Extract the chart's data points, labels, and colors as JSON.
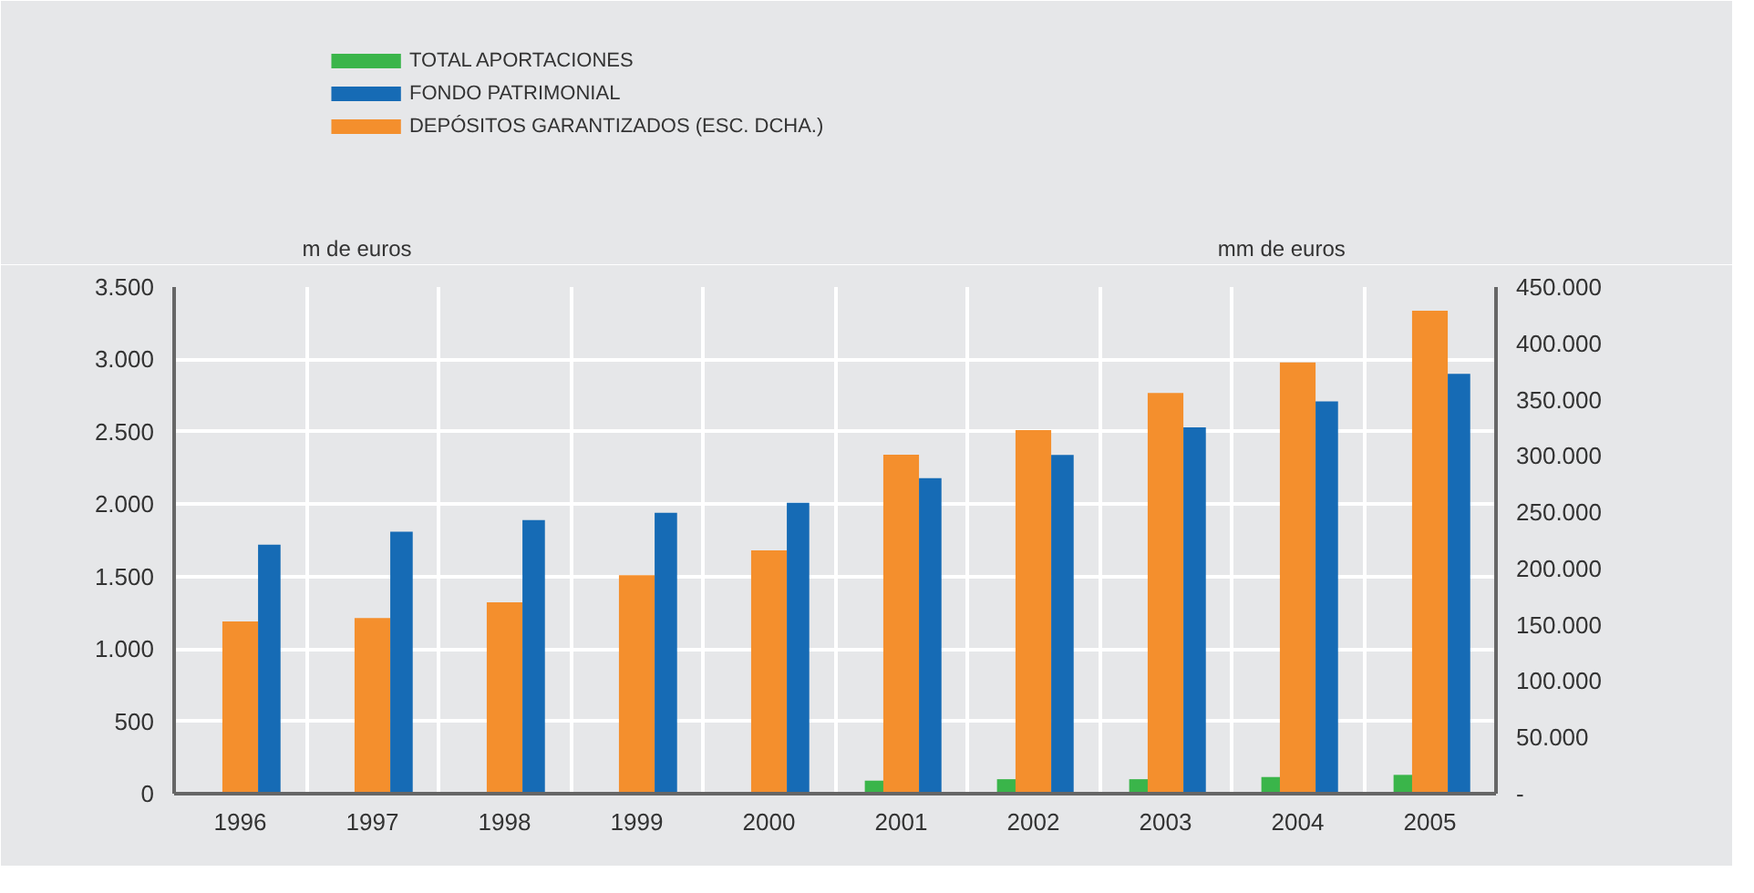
{
  "chart_data": {
    "type": "bar",
    "ylabel": "m de euros",
    "y2label": "mm de euros",
    "categories": [
      "1996",
      "1997",
      "1998",
      "1999",
      "2000",
      "2001",
      "2002",
      "2003",
      "2004",
      "2005"
    ],
    "series": [
      {
        "name": "TOTAL APORTACIONES",
        "color": "#3ab54a",
        "values": [
          null,
          null,
          null,
          null,
          null,
          90,
          100,
          100,
          115,
          130
        ]
      },
      {
        "name": "DEPÓSITOS GARANTIZADOS (ESC. DCHA.)",
        "color": "#f48f2d",
        "axis": "y2",
        "values": [
          153000,
          156000,
          170000,
          194000,
          216000,
          301000,
          323000,
          356000,
          383000,
          429000
        ]
      },
      {
        "name": "FONDO PATRIMONIAL",
        "color": "#166bb5",
        "values": [
          1720,
          1810,
          1890,
          1940,
          2010,
          2180,
          2340,
          2530,
          2710,
          2900
        ]
      }
    ],
    "ylim": [
      0,
      3500
    ],
    "yticks": [
      {
        "value": 0,
        "label": "0"
      },
      {
        "value": 500,
        "label": "500"
      },
      {
        "value": 1000,
        "label": "1.000"
      },
      {
        "value": 1500,
        "label": "1.500"
      },
      {
        "value": 2000,
        "label": "2.000"
      },
      {
        "value": 2500,
        "label": "2.500"
      },
      {
        "value": 3000,
        "label": "3.000"
      },
      {
        "value": 3500,
        "label": "3.500"
      }
    ],
    "y2lim": [
      0,
      450000
    ],
    "y2ticks": [
      {
        "value": 0,
        "label": "-"
      },
      {
        "value": 50000,
        "label": "50.000"
      },
      {
        "value": 100000,
        "label": "100.000"
      },
      {
        "value": 150000,
        "label": "150.000"
      },
      {
        "value": 200000,
        "label": "200.000"
      },
      {
        "value": 250000,
        "label": "250.000"
      },
      {
        "value": 300000,
        "label": "300.000"
      },
      {
        "value": 350000,
        "label": "350.000"
      },
      {
        "value": 400000,
        "label": "400.000"
      },
      {
        "value": 450000,
        "label": "450.000"
      }
    ],
    "grid": true,
    "legend": "top left"
  }
}
